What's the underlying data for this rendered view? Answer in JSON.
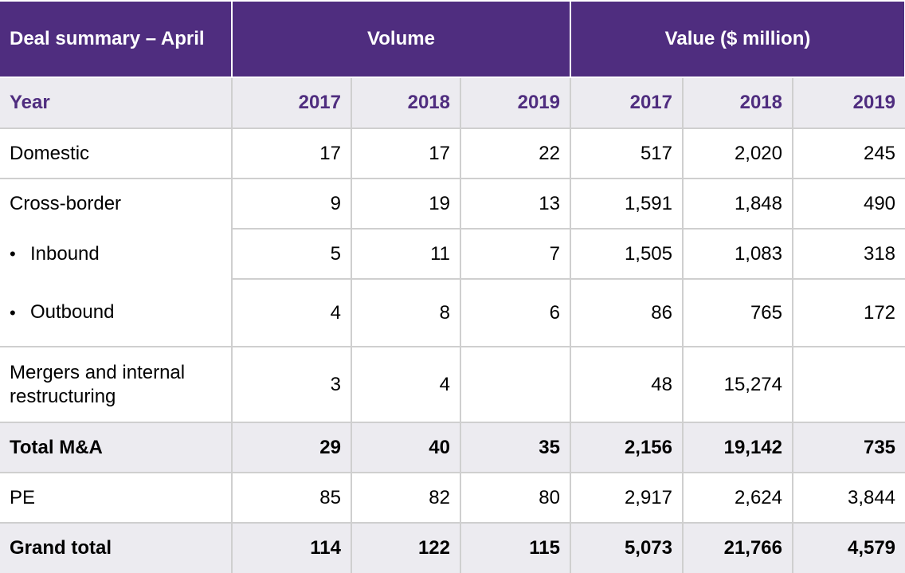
{
  "header": {
    "title": "Deal summary – April",
    "volume_label": "Volume",
    "value_label": "Value ($ million)"
  },
  "year_row": {
    "label": "Year",
    "years": [
      "2017",
      "2018",
      "2019",
      "2017",
      "2018",
      "2019"
    ]
  },
  "rows": {
    "domestic": {
      "label": "Domestic",
      "cells": [
        "17",
        "17",
        "22",
        "517",
        "2,020",
        "245"
      ]
    },
    "cross_border": {
      "label": "Cross-border",
      "cells": [
        "9",
        "19",
        "13",
        "1,591",
        "1,848",
        "490"
      ]
    },
    "inbound": {
      "bullet": "•",
      "label": "Inbound",
      "cells": [
        "5",
        "11",
        "7",
        "1,505",
        "1,083",
        "318"
      ]
    },
    "outbound": {
      "bullet": "•",
      "label": "Outbound",
      "cells": [
        "4",
        "8",
        "6",
        "86",
        "765",
        "172"
      ]
    },
    "mergers": {
      "label": "Mergers and internal restructuring",
      "cells": [
        "3",
        "4",
        "",
        "48",
        "15,274",
        ""
      ]
    },
    "total_ma": {
      "label": "Total M&A",
      "cells": [
        "29",
        "40",
        "35",
        "2,156",
        "19,142",
        "735"
      ]
    },
    "pe": {
      "label": "PE",
      "cells": [
        "85",
        "82",
        "80",
        "2,917",
        "2,624",
        "3,844"
      ]
    },
    "grand_total": {
      "label": "Grand total",
      "cells": [
        "114",
        "122",
        "115",
        "5,073",
        "21,766",
        "4,579"
      ]
    }
  }
}
